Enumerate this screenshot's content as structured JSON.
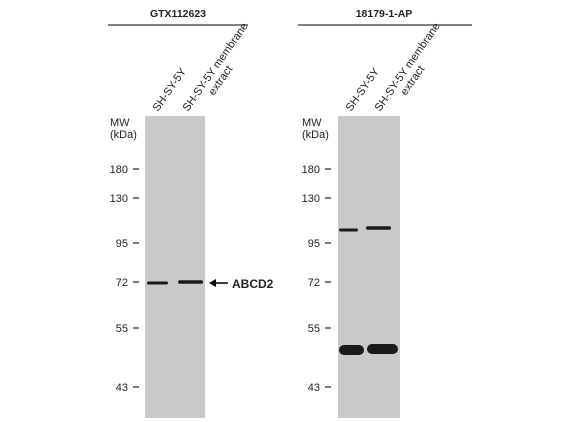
{
  "panels": [
    {
      "antibody": "GTX112623",
      "lanes": [
        {
          "lines": [
            "SH-SY-5Y"
          ]
        },
        {
          "lines": [
            "SH-SY-5Y membrane",
            "extract"
          ]
        }
      ],
      "mw_label": [
        "MW",
        "(kDa)"
      ],
      "markers": [
        180,
        130,
        95,
        72,
        55,
        43
      ],
      "target": "ABCD2"
    },
    {
      "antibody": "18179-1-AP",
      "lanes": [
        {
          "lines": [
            "SH-SY-5Y"
          ]
        },
        {
          "lines": [
            "SH-SY-5Y membrane",
            "extract"
          ]
        }
      ],
      "mw_label": [
        "MW",
        "(kDa)"
      ],
      "markers": [
        180,
        130,
        95,
        72,
        55,
        43
      ]
    }
  ]
}
